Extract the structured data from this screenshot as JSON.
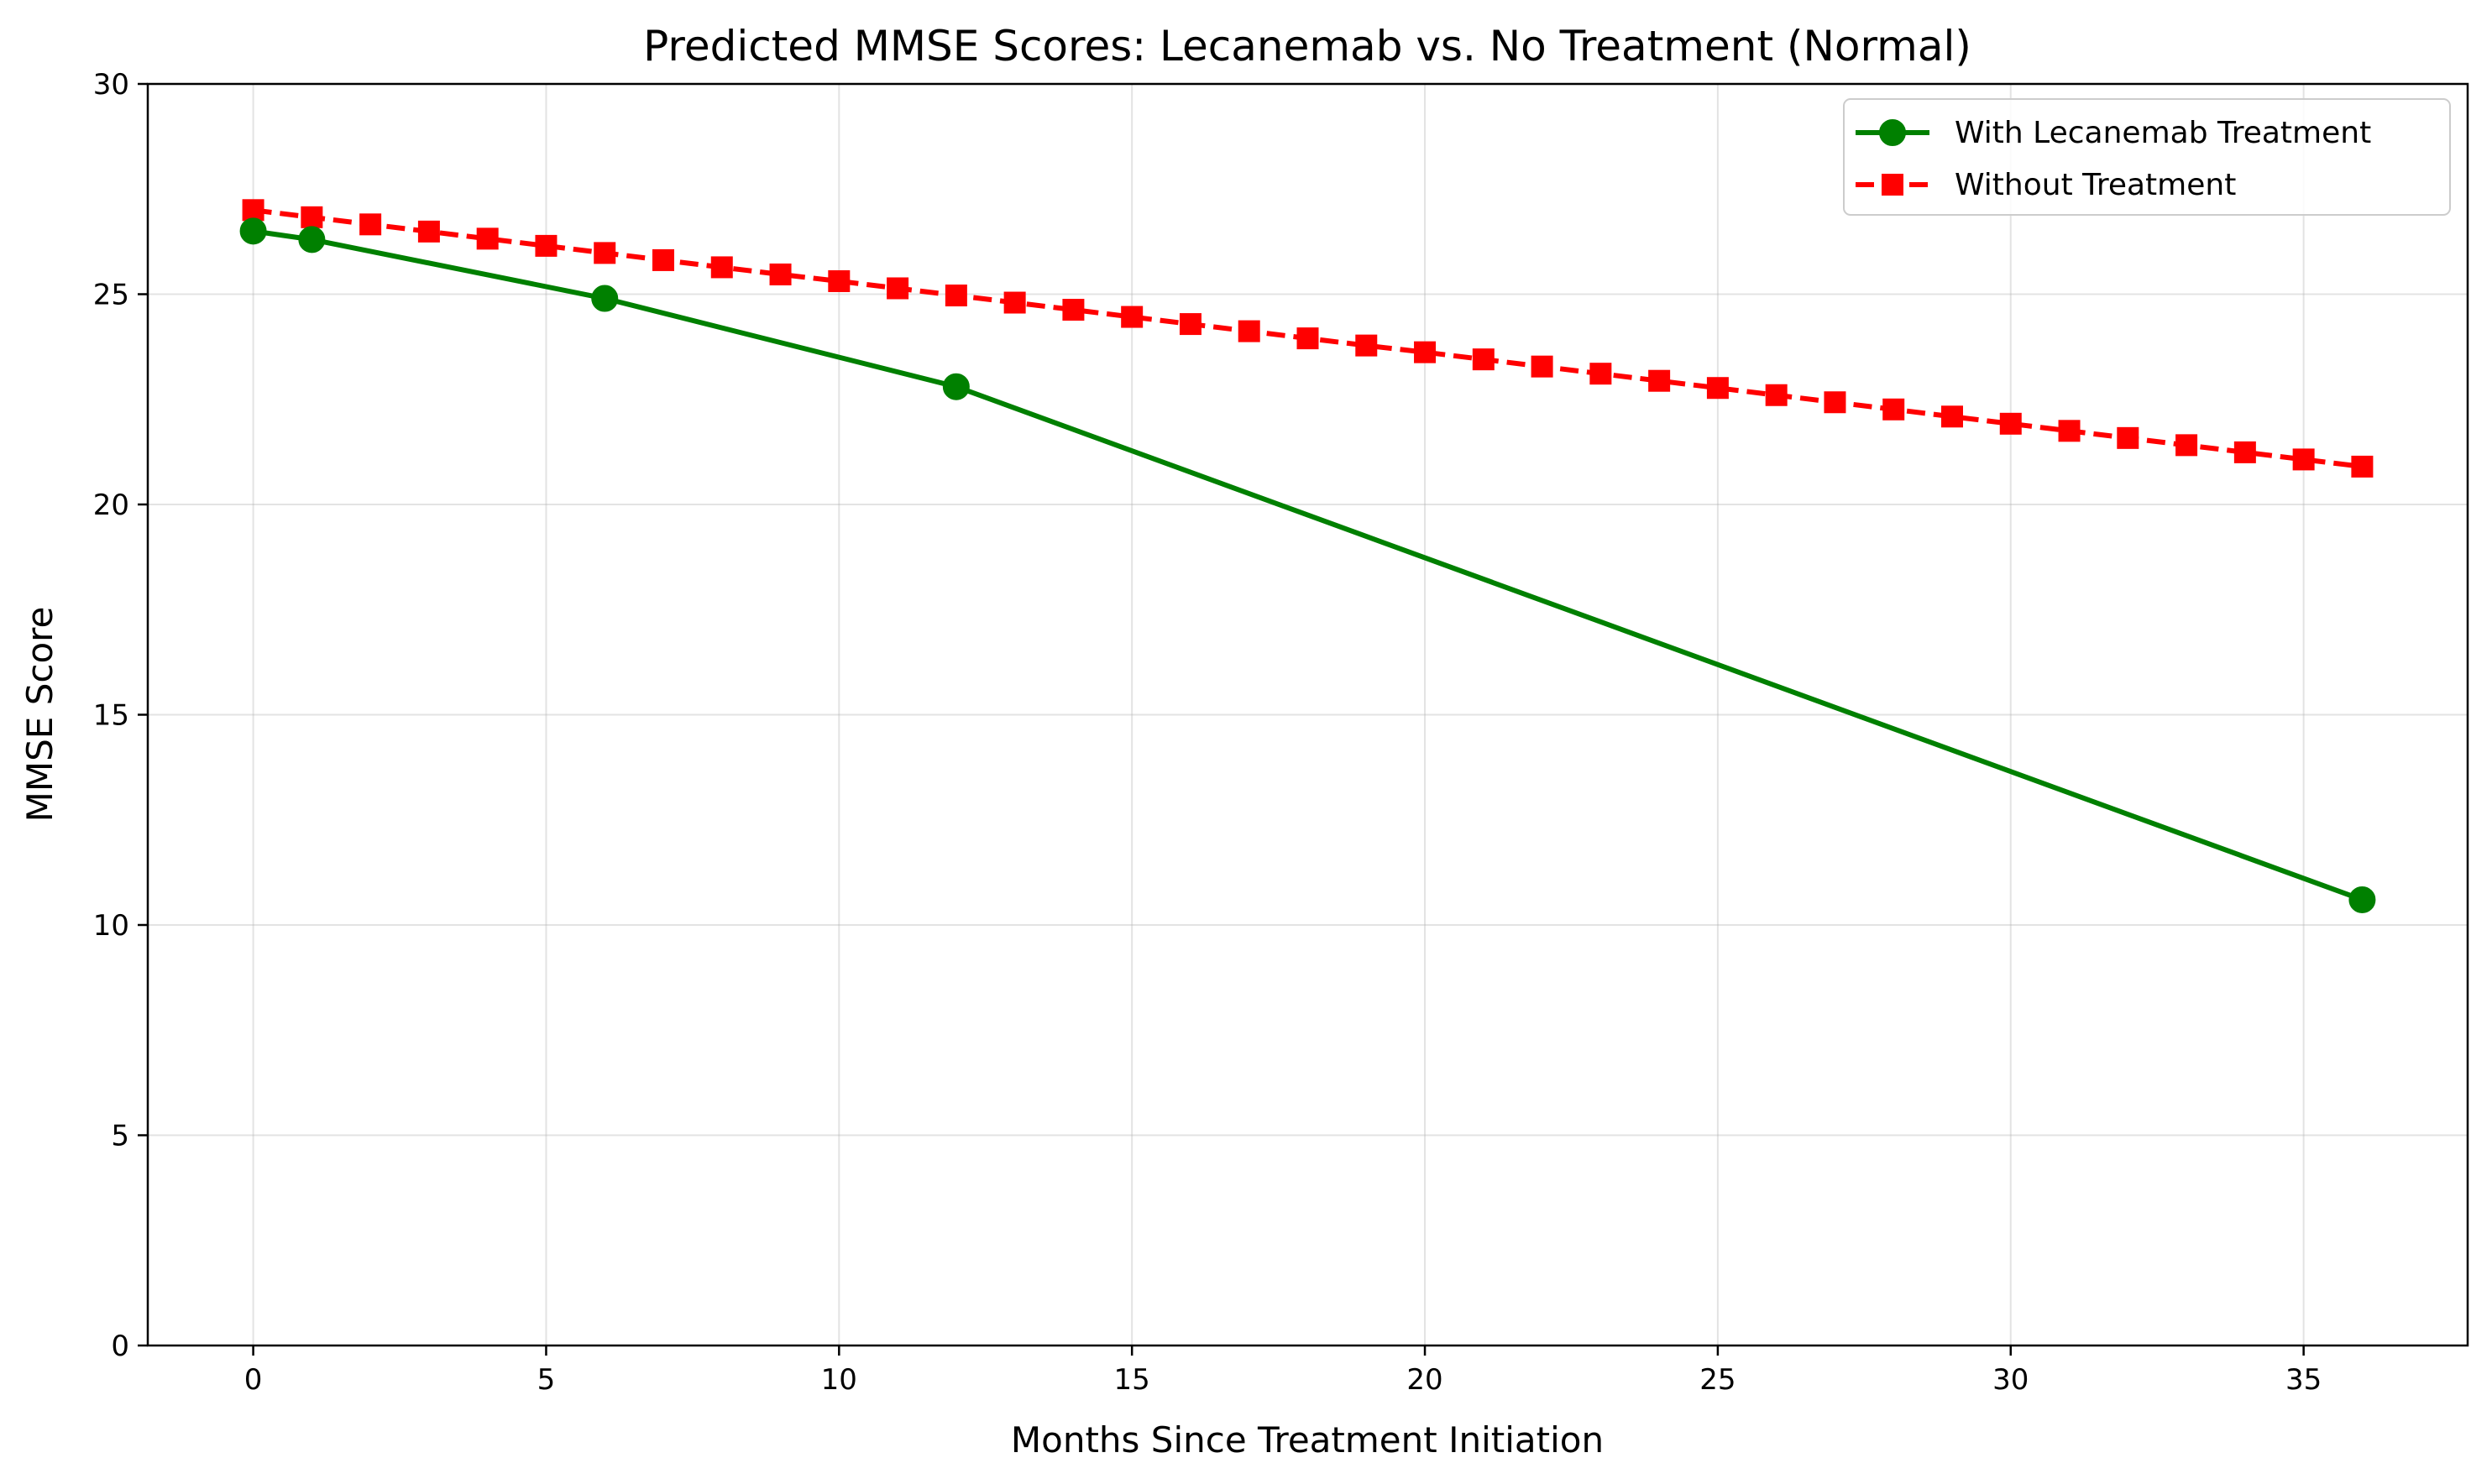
{
  "chart_data": {
    "type": "line",
    "title": "Predicted MMSE Scores: Lecanemab vs. No Treatment (Normal)",
    "xlabel": "Months Since Treatment Initiation",
    "ylabel": "MMSE Score",
    "xlim": [
      -1.8,
      37.8
    ],
    "ylim": [
      0,
      30
    ],
    "xticks": [
      0,
      5,
      10,
      15,
      20,
      25,
      30,
      35
    ],
    "yticks": [
      0,
      5,
      10,
      15,
      20,
      25,
      30
    ],
    "grid": true,
    "legend_position": "top-right",
    "series": [
      {
        "name": "With Lecanemab Treatment",
        "color": "#008000",
        "line_style": "solid",
        "marker": "circle",
        "x": [
          0,
          1,
          6,
          12,
          36
        ],
        "y": [
          26.5,
          26.3,
          24.9,
          22.8,
          10.6
        ]
      },
      {
        "name": "Without Treatment",
        "color": "#ff0000",
        "line_style": "dashed",
        "marker": "square",
        "x": [
          0,
          1,
          2,
          3,
          4,
          5,
          6,
          7,
          8,
          9,
          10,
          11,
          12,
          13,
          14,
          15,
          16,
          17,
          18,
          19,
          20,
          21,
          22,
          23,
          24,
          25,
          26,
          27,
          28,
          29,
          30,
          31,
          32,
          33,
          34,
          35,
          36
        ],
        "y": [
          27.0,
          26.83,
          26.66,
          26.49,
          26.32,
          26.15,
          25.98,
          25.81,
          25.64,
          25.47,
          25.31,
          25.14,
          24.97,
          24.8,
          24.63,
          24.46,
          24.29,
          24.12,
          23.95,
          23.78,
          23.62,
          23.45,
          23.28,
          23.11,
          22.94,
          22.77,
          22.6,
          22.43,
          22.26,
          22.09,
          21.92,
          21.75,
          21.58,
          21.41,
          21.24,
          21.07,
          20.9
        ]
      }
    ]
  }
}
